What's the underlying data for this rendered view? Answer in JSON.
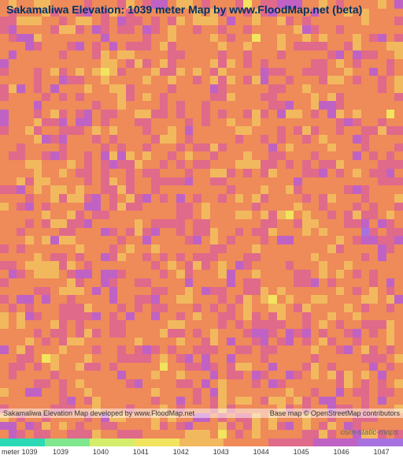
{
  "title": "Sakamaliwa Elevation: 1039 meter Map by www.FloodMap.net (beta)",
  "watermark": "osm-static-maps",
  "footer": {
    "left": "Sakamaliwa Elevation Map developed by www.FloodMap.net",
    "right": "Base map © OpenStreetMap contributors"
  },
  "map": {
    "type": "heatmap",
    "grid_cols": 48,
    "grid_rows": 52,
    "background_color": "#ffffff",
    "title_color": "#003366",
    "title_fontsize": 14,
    "palette": {
      "0": "#2bd9b5",
      "1": "#7fe88f",
      "2": "#d4ee6b",
      "3": "#f2e45e",
      "4": "#f2b85e",
      "5": "#ef8a59",
      "6": "#e06a8a",
      "7": "#c062c4",
      "8": "#a772e0"
    },
    "seed": 42
  },
  "legend": {
    "unit_label": "meter 1039",
    "values": [
      "1039",
      "1040",
      "1041",
      "1042",
      "1043",
      "1044",
      "1045",
      "1046",
      "1047"
    ],
    "colors": [
      "#2bd9b5",
      "#7fe88f",
      "#d4ee6b",
      "#f2e45e",
      "#f2b85e",
      "#ef8a59",
      "#e06a8a",
      "#c062c4",
      "#a772e0"
    ],
    "label_fontsize": 9
  }
}
